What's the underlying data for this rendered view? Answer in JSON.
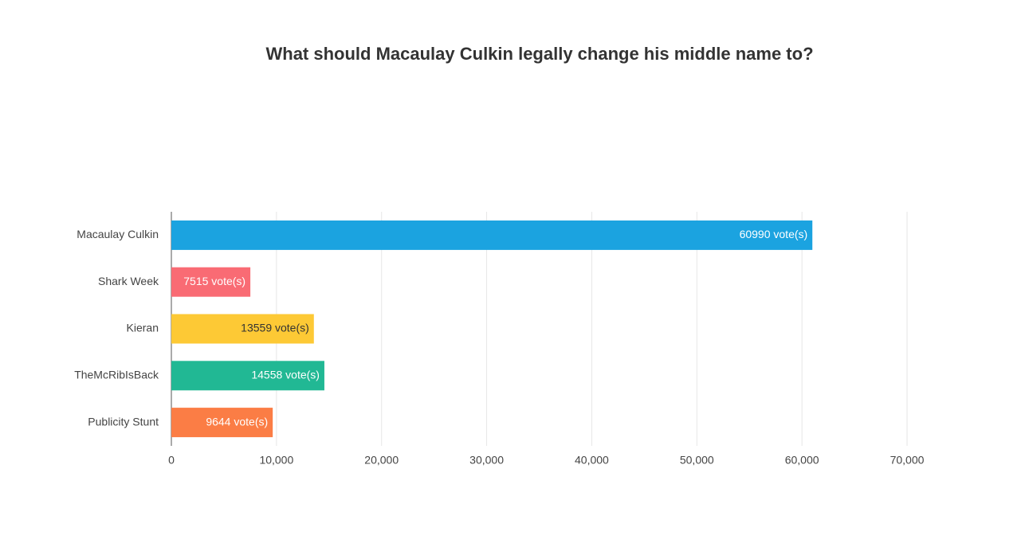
{
  "chart_data": {
    "type": "hbar",
    "title": "What should Macaulay Culkin legally change his middle name to?",
    "categories": [
      "Macaulay Culkin",
      "Shark Week",
      "Kieran",
      "TheMcRibIsBack",
      "Publicity Stunt"
    ],
    "values": [
      60990,
      7515,
      13559,
      14558,
      9644
    ],
    "value_labels": [
      "60990 vote(s)",
      "7515 vote(s)",
      "13559 vote(s)",
      "14558 vote(s)",
      "9644 vote(s)"
    ],
    "colors": [
      "#1ba3e0",
      "#f96b74",
      "#fdc935",
      "#21b894",
      "#fb7d45"
    ],
    "label_colors": [
      "#ffffff",
      "#ffffff",
      "#333333",
      "#ffffff",
      "#ffffff"
    ],
    "xlim": [
      0,
      70000
    ],
    "xticks": [
      0,
      {
        "value": 10000,
        "label": "10,000"
      },
      {
        "value": 20000,
        "label": "20,000"
      },
      {
        "value": 30000,
        "label": "30,000"
      },
      {
        "value": 40000,
        "label": "40,000"
      },
      {
        "value": 50000,
        "label": "50,000"
      },
      {
        "value": 60000,
        "label": "60,000"
      },
      {
        "value": 70000,
        "label": "70,000"
      }
    ],
    "grid": true
  }
}
